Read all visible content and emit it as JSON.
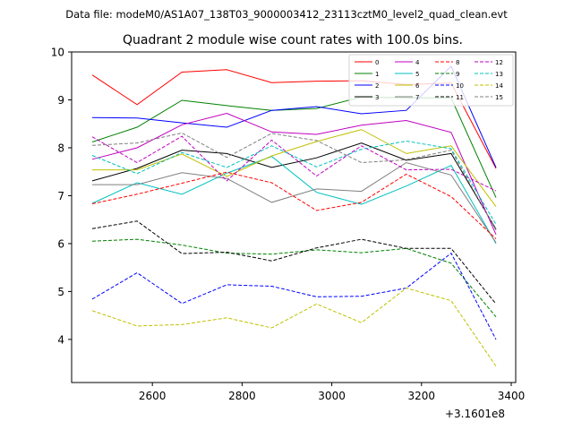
{
  "chart_data": {
    "type": "line",
    "suptitle": "Data file: modeM0/AS1A07_138T03_9000003412_23113cztM0_level2_quad_clean.evt",
    "title": "Quadrant 2 module wise count rates with 100.0s bins.",
    "xlabel": "",
    "ylabel": "",
    "x_offset_label": "+3.1601e8",
    "xlim": [
      2420,
      3410
    ],
    "ylim": [
      3.1,
      10.0
    ],
    "xticks": [
      2600,
      2800,
      3000,
      3200,
      3400
    ],
    "yticks": [
      4,
      5,
      6,
      7,
      8,
      9,
      10
    ],
    "grid": false,
    "legend_position": "top-right",
    "legend_columns": 4,
    "x": [
      2466,
      2566,
      2666,
      2766,
      2866,
      2966,
      3066,
      3166,
      3266,
      3366
    ],
    "series": [
      {
        "name": "0",
        "color": "#ff0000",
        "dash": "solid",
        "values": [
          9.52,
          8.9,
          9.58,
          9.63,
          9.36,
          9.39,
          9.4,
          9.32,
          9.35,
          7.57
        ]
      },
      {
        "name": "1",
        "color": "#008000",
        "dash": "solid",
        "values": [
          8.12,
          8.43,
          8.99,
          8.88,
          8.78,
          8.82,
          9.06,
          9.04,
          9.04,
          6.96
        ]
      },
      {
        "name": "2",
        "color": "#0000ff",
        "dash": "solid",
        "values": [
          8.63,
          8.62,
          8.52,
          8.43,
          8.78,
          8.86,
          8.71,
          8.78,
          9.7,
          7.59
        ]
      },
      {
        "name": "3",
        "color": "#000000",
        "dash": "solid",
        "values": [
          7.31,
          7.57,
          7.95,
          7.88,
          7.59,
          7.79,
          8.1,
          7.74,
          7.88,
          6.3
        ]
      },
      {
        "name": "4",
        "color": "#c000c0",
        "dash": "solid",
        "values": [
          7.76,
          8.0,
          8.48,
          8.72,
          8.33,
          8.28,
          8.47,
          8.57,
          8.32,
          6.19
        ]
      },
      {
        "name": "5",
        "color": "#00c0c0",
        "dash": "solid",
        "values": [
          6.84,
          7.27,
          7.03,
          7.47,
          7.82,
          7.07,
          6.82,
          7.2,
          7.63,
          6.0
        ]
      },
      {
        "name": "6",
        "color": "#c0c000",
        "dash": "solid",
        "values": [
          7.54,
          7.54,
          7.87,
          7.4,
          7.83,
          8.13,
          8.38,
          7.88,
          8.04,
          6.77
        ]
      },
      {
        "name": "7",
        "color": "#808080",
        "dash": "solid",
        "values": [
          7.23,
          7.23,
          7.48,
          7.36,
          6.86,
          7.14,
          7.09,
          7.69,
          7.43,
          6.02
        ]
      },
      {
        "name": "8",
        "color": "#ff0000",
        "dash": "dashed",
        "values": [
          6.83,
          7.03,
          7.26,
          7.49,
          7.27,
          6.69,
          6.86,
          7.45,
          6.98,
          6.1
        ]
      },
      {
        "name": "9",
        "color": "#008000",
        "dash": "dashed",
        "values": [
          6.05,
          6.09,
          5.97,
          5.8,
          5.78,
          5.87,
          5.81,
          5.9,
          5.59,
          4.47
        ]
      },
      {
        "name": "10",
        "color": "#0000ff",
        "dash": "dashed",
        "values": [
          4.84,
          5.39,
          4.75,
          5.14,
          5.11,
          4.89,
          4.9,
          5.07,
          5.8,
          4.0
        ]
      },
      {
        "name": "11",
        "color": "#000000",
        "dash": "dashed",
        "values": [
          6.31,
          6.47,
          5.79,
          5.82,
          5.64,
          5.91,
          6.09,
          5.9,
          5.9,
          4.74
        ]
      },
      {
        "name": "12",
        "color": "#c000c0",
        "dash": "dashed",
        "values": [
          8.23,
          7.69,
          8.24,
          7.31,
          8.16,
          7.41,
          8.04,
          7.54,
          7.55,
          7.1
        ]
      },
      {
        "name": "13",
        "color": "#00c0c0",
        "dash": "dashed",
        "values": [
          7.84,
          7.46,
          7.9,
          7.59,
          8.04,
          7.6,
          7.97,
          8.14,
          7.98,
          6.4
        ]
      },
      {
        "name": "14",
        "color": "#c0c000",
        "dash": "dashed",
        "values": [
          4.6,
          4.28,
          4.31,
          4.45,
          4.24,
          4.74,
          4.35,
          5.07,
          4.81,
          3.44
        ]
      },
      {
        "name": "15",
        "color": "#808080",
        "dash": "dashed",
        "values": [
          8.05,
          8.1,
          8.31,
          7.8,
          8.3,
          8.15,
          7.69,
          7.75,
          7.95,
          6.28
        ]
      }
    ]
  }
}
